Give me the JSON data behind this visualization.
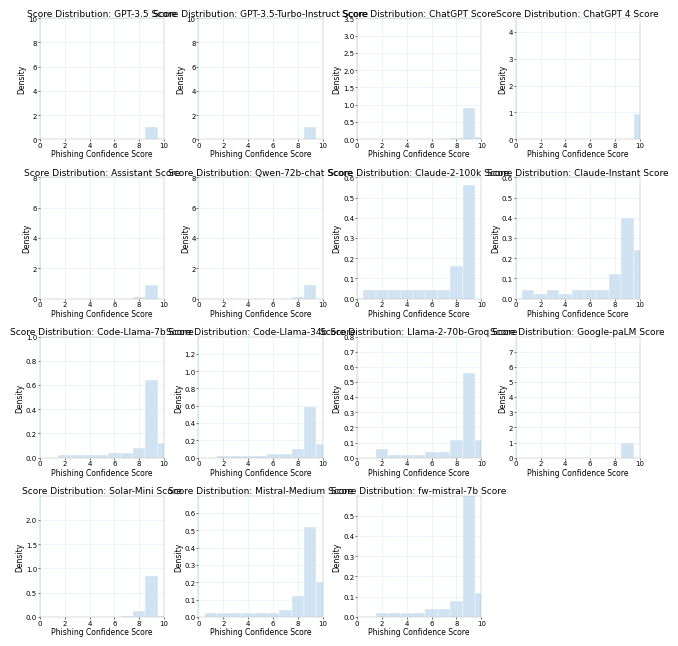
{
  "models": [
    {
      "title": "Score Distribution: GPT-3.5 Score",
      "scores": [
        9,
        9,
        9,
        9,
        9,
        9,
        9,
        9,
        9,
        9,
        9,
        9,
        9,
        9,
        9,
        9,
        9,
        9,
        9,
        9,
        9,
        9,
        9,
        9,
        9,
        9,
        9,
        9,
        9,
        9,
        9,
        9,
        9,
        9,
        9,
        9,
        9,
        9,
        9,
        9,
        9,
        9,
        9,
        9,
        9,
        9,
        9,
        9,
        9,
        9
      ],
      "ylim": [
        0,
        10
      ],
      "yticks": [
        0,
        2,
        4,
        6,
        8,
        10
      ],
      "bw": 0.1
    },
    {
      "title": "Score Distribution: GPT-3.5-Turbo-Instruct Score",
      "scores": [
        9,
        9,
        9,
        9,
        9,
        9,
        9,
        9,
        9,
        9,
        9,
        9,
        9,
        9,
        9,
        9,
        9,
        9,
        9,
        9,
        9,
        9,
        9,
        9,
        9,
        9,
        9,
        9,
        9,
        9,
        9,
        9,
        9,
        9,
        9,
        9,
        9,
        9,
        9,
        9,
        9,
        9,
        9,
        9,
        9,
        9,
        9,
        9,
        9,
        9
      ],
      "ylim": [
        0,
        10
      ],
      "yticks": [
        0,
        2,
        4,
        6,
        8,
        10
      ],
      "bw": 0.1
    },
    {
      "title": "Score Distribution: ChatGPT Score",
      "scores": [
        9,
        9,
        9,
        9,
        9,
        9,
        9,
        9,
        9,
        9,
        9,
        9,
        9,
        9,
        9,
        9,
        9,
        9,
        9,
        9,
        9,
        9,
        9,
        9,
        9,
        9,
        9,
        9,
        9,
        9,
        9,
        9,
        9,
        9,
        9,
        9,
        9,
        9,
        9,
        9,
        9,
        9,
        9,
        9,
        9,
        8,
        8,
        10,
        10,
        10
      ],
      "ylim": [
        0,
        3.5
      ],
      "yticks": [
        0.0,
        0.5,
        1.0,
        1.5,
        2.0,
        2.5,
        3.0,
        3.5
      ],
      "bw": 0.15
    },
    {
      "title": "Score Distribution: ChatGPT 4 Score",
      "scores": [
        10,
        10,
        10,
        10,
        10,
        10,
        10,
        10,
        10,
        10,
        10,
        10,
        10,
        10,
        10,
        10,
        10,
        10,
        10,
        10,
        10,
        10,
        10,
        10,
        10,
        10,
        10,
        10,
        10,
        10,
        10,
        10,
        10,
        10,
        10,
        10,
        10,
        10,
        10,
        10,
        10,
        10,
        10,
        10,
        10,
        10,
        10,
        10,
        8,
        9
      ],
      "ylim": [
        0,
        4.5
      ],
      "yticks": [
        0,
        1,
        2,
        3,
        4
      ],
      "bw": 0.15
    },
    {
      "title": "Score Distribution: Assistant Score",
      "scores": [
        9,
        9,
        9,
        9,
        9,
        9,
        9,
        9,
        9,
        9,
        9,
        9,
        9,
        9,
        9,
        9,
        9,
        9,
        9,
        9,
        9,
        9,
        9,
        9,
        9,
        9,
        9,
        9,
        9,
        9,
        9,
        9,
        9,
        9,
        9,
        9,
        9,
        9,
        9,
        9,
        9,
        9,
        9,
        9,
        9,
        8,
        8,
        8,
        8,
        8
      ],
      "ylim": [
        0,
        8
      ],
      "yticks": [
        0,
        2,
        4,
        6,
        8
      ],
      "bw": 0.1
    },
    {
      "title": "Score Distribution: Qwen-72b-chat Score",
      "scores": [
        9,
        9,
        9,
        9,
        9,
        9,
        9,
        9,
        9,
        9,
        9,
        9,
        9,
        9,
        9,
        9,
        9,
        9,
        9,
        9,
        9,
        9,
        9,
        9,
        9,
        9,
        9,
        9,
        9,
        9,
        9,
        9,
        9,
        9,
        9,
        9,
        9,
        9,
        9,
        9,
        9,
        9,
        9,
        9,
        9,
        8,
        8,
        8,
        8,
        8
      ],
      "ylim": [
        0,
        8
      ],
      "yticks": [
        0,
        2,
        4,
        6,
        8
      ],
      "bw": 0.1
    },
    {
      "title": "Score Distribution: Claude-2-100k Score",
      "scores": [
        1,
        2,
        9,
        9,
        9,
        9,
        9,
        9,
        9,
        9,
        9,
        9,
        9,
        9,
        9,
        9,
        9,
        9,
        9,
        9,
        9,
        9,
        9,
        9,
        9,
        9,
        9,
        9,
        9,
        9,
        8,
        8,
        8,
        8,
        8,
        8,
        8,
        8,
        7,
        7,
        6,
        6,
        5,
        5,
        4,
        4,
        3,
        3,
        2,
        1
      ],
      "ylim": [
        0,
        0.6
      ],
      "yticks": [
        0.0,
        0.1,
        0.2,
        0.3,
        0.4,
        0.5,
        0.6
      ],
      "bw": 0.3
    },
    {
      "title": "Score Distribution: Claude-Instant Score",
      "scores": [
        1,
        1,
        2,
        3,
        3,
        4,
        5,
        5,
        6,
        6,
        7,
        7,
        8,
        8,
        8,
        8,
        8,
        8,
        9,
        9,
        9,
        9,
        9,
        9,
        9,
        9,
        9,
        9,
        9,
        9,
        9,
        9,
        9,
        9,
        9,
        9,
        9,
        9,
        10,
        10,
        10,
        10,
        10,
        10,
        10,
        10,
        10,
        10,
        10,
        10
      ],
      "ylim": [
        0,
        0.6
      ],
      "yticks": [
        0.0,
        0.1,
        0.2,
        0.3,
        0.4,
        0.5,
        0.6
      ],
      "bw": 0.35
    },
    {
      "title": "Score Distribution: Code-Llama-7b Score",
      "scores": [
        2,
        3,
        4,
        5,
        6,
        6,
        7,
        7,
        8,
        8,
        8,
        8,
        9,
        9,
        9,
        9,
        9,
        9,
        9,
        9,
        9,
        9,
        9,
        9,
        9,
        9,
        9,
        9,
        9,
        9,
        9,
        9,
        9,
        9,
        9,
        9,
        9,
        9,
        9,
        9,
        9,
        9,
        9,
        9,
        10,
        10,
        10,
        10,
        10,
        10
      ],
      "ylim": [
        0,
        1.0
      ],
      "yticks": [
        0.0,
        0.2,
        0.4,
        0.6,
        0.8,
        1.0
      ],
      "bw": 0.25
    },
    {
      "title": "Score Distribution: Code-Llama-34b Score",
      "scores": [
        2,
        3,
        4,
        5,
        6,
        6,
        7,
        7,
        8,
        8,
        8,
        8,
        8,
        9,
        9,
        9,
        9,
        9,
        9,
        9,
        9,
        9,
        9,
        9,
        9,
        9,
        9,
        9,
        9,
        9,
        9,
        9,
        9,
        9,
        9,
        9,
        9,
        9,
        9,
        9,
        9,
        9,
        10,
        10,
        10,
        10,
        10,
        10,
        10,
        10
      ],
      "ylim": [
        0,
        1.4
      ],
      "yticks": [
        0.0,
        0.2,
        0.4,
        0.6,
        0.8,
        1.0,
        1.2
      ],
      "bw": 0.25
    },
    {
      "title": "Score Distribution: Llama-2-70b-Groq Score",
      "scores": [
        2,
        2,
        2,
        3,
        4,
        5,
        6,
        6,
        7,
        7,
        8,
        8,
        8,
        8,
        8,
        8,
        9,
        9,
        9,
        9,
        9,
        9,
        9,
        9,
        9,
        9,
        9,
        9,
        9,
        9,
        9,
        9,
        9,
        9,
        9,
        9,
        9,
        9,
        9,
        9,
        9,
        9,
        9,
        9,
        10,
        10,
        10,
        10,
        10,
        10
      ],
      "ylim": [
        0,
        0.8
      ],
      "yticks": [
        0.0,
        0.1,
        0.2,
        0.3,
        0.4,
        0.5,
        0.6,
        0.7,
        0.8
      ],
      "bw": 0.3
    },
    {
      "title": "Score Distribution: Google-paLM Score",
      "scores": [
        9,
        9,
        9,
        9,
        9,
        9,
        9,
        9,
        9,
        9,
        9,
        9,
        9,
        9,
        9,
        9,
        9,
        9,
        9,
        9,
        9,
        9,
        9,
        9,
        9,
        9,
        9,
        9,
        9,
        9,
        9,
        9,
        9,
        9,
        9,
        9,
        9,
        9,
        9,
        9,
        9,
        9,
        9,
        9,
        9,
        9,
        9,
        9,
        9,
        9
      ],
      "ylim": [
        0,
        8
      ],
      "yticks": [
        0,
        1,
        2,
        3,
        4,
        5,
        6,
        7
      ],
      "bw": 0.1
    },
    {
      "title": "Score Distribution: Solar-Mini Score",
      "scores": [
        7,
        8,
        8,
        8,
        8,
        8,
        8,
        9,
        9,
        9,
        9,
        9,
        9,
        9,
        9,
        9,
        9,
        9,
        9,
        9,
        9,
        9,
        9,
        9,
        9,
        9,
        9,
        9,
        9,
        9,
        9,
        9,
        9,
        9,
        9,
        9,
        9,
        9,
        9,
        9,
        9,
        9,
        9,
        9,
        9,
        9,
        9,
        9,
        9,
        10
      ],
      "ylim": [
        0,
        2.5
      ],
      "yticks": [
        0.0,
        0.5,
        1.0,
        1.5,
        2.0
      ],
      "bw": 0.15
    },
    {
      "title": "Score Distribution: Mistral-Medium Score",
      "scores": [
        1,
        2,
        3,
        4,
        5,
        6,
        7,
        7,
        8,
        8,
        8,
        8,
        8,
        8,
        9,
        9,
        9,
        9,
        9,
        9,
        9,
        9,
        9,
        9,
        9,
        9,
        9,
        9,
        9,
        9,
        9,
        9,
        9,
        9,
        9,
        9,
        9,
        9,
        9,
        9,
        10,
        10,
        10,
        10,
        10,
        10,
        10,
        10,
        10,
        10
      ],
      "ylim": [
        0,
        0.7
      ],
      "yticks": [
        0.0,
        0.1,
        0.2,
        0.3,
        0.4,
        0.5,
        0.6
      ],
      "bw": 0.35
    },
    {
      "title": "Score Distribution: fw-mistral-7b Score",
      "scores": [
        2,
        3,
        4,
        5,
        6,
        6,
        7,
        7,
        8,
        8,
        8,
        8,
        9,
        9,
        9,
        9,
        9,
        9,
        9,
        9,
        9,
        9,
        9,
        9,
        9,
        9,
        9,
        9,
        9,
        9,
        9,
        9,
        9,
        9,
        9,
        9,
        9,
        9,
        9,
        9,
        9,
        9,
        9,
        9,
        10,
        10,
        10,
        10,
        10,
        10
      ],
      "ylim": [
        0,
        0.6
      ],
      "yticks": [
        0.0,
        0.1,
        0.2,
        0.3,
        0.4,
        0.5
      ],
      "bw": 0.3
    }
  ],
  "bar_color": "#c8dff0",
  "bar_alpha": 0.85,
  "line_color": "#7ab8d4",
  "grid_color": "#ddeef8",
  "xlabel": "Phishing Confidence Score",
  "ylabel": "Density",
  "title_fontsize": 6.5,
  "label_fontsize": 5.5,
  "tick_fontsize": 5.0,
  "nrows": 4,
  "ncols": 4,
  "n_visible": 15
}
